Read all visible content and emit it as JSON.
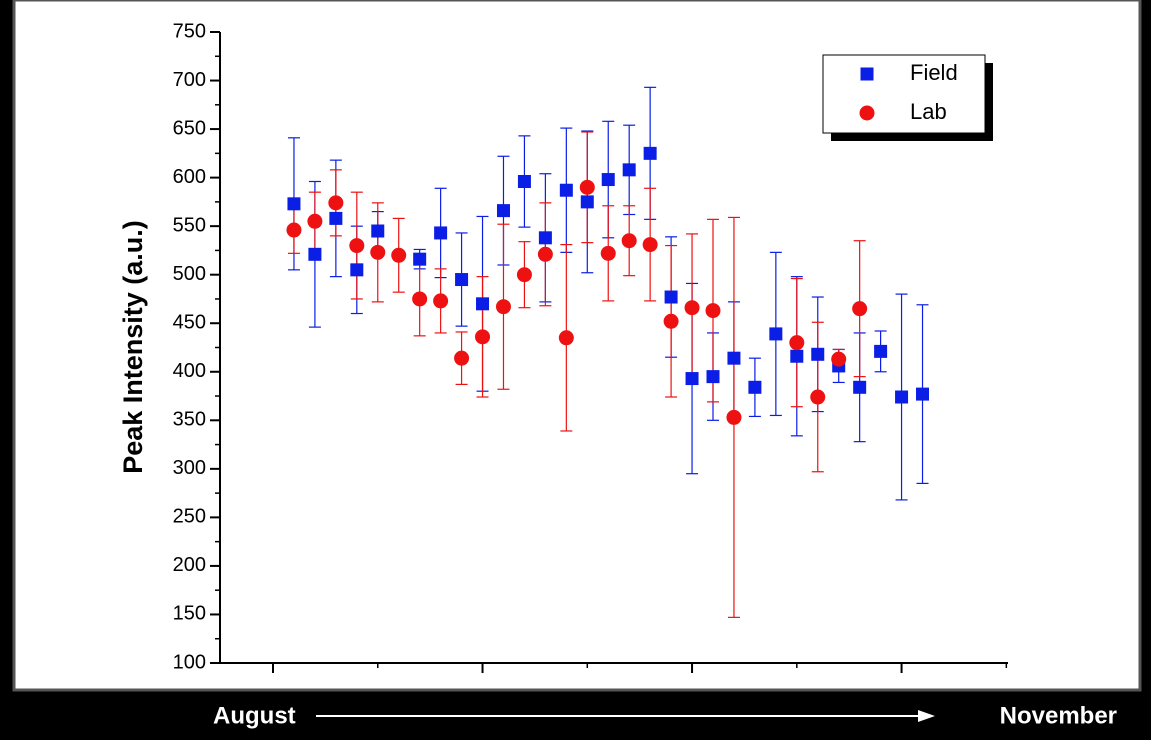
{
  "chart_data": {
    "type": "scatter",
    "y_label": "Peak Intensity (a.u.)",
    "annotation": {
      "start": "August",
      "end": "November"
    },
    "xlim": [
      -2.53,
      35.08
    ],
    "xticks": [
      0,
      10,
      20,
      30
    ],
    "ylim": [
      100,
      750
    ],
    "yticks": [
      100,
      150,
      200,
      250,
      300,
      350,
      400,
      450,
      500,
      550,
      600,
      650,
      700,
      750
    ],
    "legend": "top-right",
    "series": [
      {
        "name": "Field",
        "color": "#0a1ee6",
        "marker": "square",
        "x": [
          1,
          2,
          3,
          4,
          5,
          7,
          8,
          9,
          10,
          11,
          12,
          13,
          14,
          15,
          16,
          17,
          18,
          19,
          20,
          21,
          22,
          23,
          24,
          25,
          26,
          27,
          28,
          29,
          30,
          31
        ],
        "values": [
          573,
          521,
          558,
          505,
          545,
          516,
          543,
          495,
          470,
          566,
          596,
          538,
          587,
          575,
          598,
          608,
          625,
          477,
          393,
          395,
          414,
          384,
          439,
          416,
          418,
          406,
          384,
          421,
          374,
          377
        ],
        "errors": [
          68,
          75,
          60,
          45,
          20,
          10,
          46,
          48,
          90,
          56,
          47,
          66,
          64,
          73,
          60,
          46,
          68,
          62,
          98,
          45,
          58,
          30,
          84,
          82,
          59,
          17,
          56,
          21,
          106,
          92
        ]
      },
      {
        "name": "Lab",
        "color": "#ee1111",
        "marker": "circle",
        "x": [
          1,
          2,
          3,
          4,
          5,
          6,
          7,
          8,
          9,
          10,
          11,
          12,
          13,
          14,
          15,
          16,
          17,
          18,
          19,
          20,
          21,
          22,
          25,
          26,
          27,
          28
        ],
        "values": [
          546,
          555,
          574,
          530,
          523,
          520,
          475,
          473,
          414,
          436,
          467,
          500,
          521,
          435,
          590,
          522,
          535,
          531,
          452,
          466,
          463,
          353,
          430,
          374,
          413,
          465
        ],
        "errors": [
          24,
          30,
          34,
          55,
          51,
          38,
          38,
          33,
          27,
          62,
          85,
          34,
          53,
          96,
          57,
          49,
          36,
          58,
          78,
          76,
          94,
          206,
          66,
          77,
          10,
          70
        ]
      }
    ]
  }
}
